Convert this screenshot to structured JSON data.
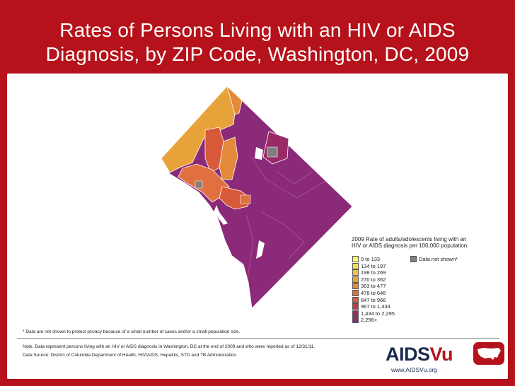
{
  "title": {
    "line1": "Rates of Persons Living with an HIV or AIDS",
    "line2": "Diagnosis, by ZIP Code, Washington, DC, 2009"
  },
  "legend": {
    "title_line1": "2009 Rate of adults/adolescents living with an",
    "title_line2": "HIV or AIDS diagnosis per 100,000 population.",
    "items": [
      {
        "label": "0 to 133",
        "color": "#ffff66"
      },
      {
        "label": "134 to 197",
        "color": "#f8df3e"
      },
      {
        "label": "198 to 269",
        "color": "#f0c440"
      },
      {
        "label": "270 to 362",
        "color": "#e8a23a"
      },
      {
        "label": "363 to 477",
        "color": "#e48a3a"
      },
      {
        "label": "478 to 646",
        "color": "#e07040"
      },
      {
        "label": "647 to 966",
        "color": "#d85a3a"
      },
      {
        "label": "967 to 1,433",
        "color": "#c03a52"
      },
      {
        "label": "1,434 to 2,295",
        "color": "#9a2a66"
      },
      {
        "label": "2,296+",
        "color": "#8b2a78"
      }
    ],
    "not_shown": {
      "label": "Data not shown*",
      "color": "#7f7f7f"
    }
  },
  "footnote": "* Data are not shown to protect privacy because of a small number of cases and/or a small population size.",
  "note": "Note. Data represent persons living with an HIV or AIDS diagnosis in Washington, DC at the end of 2009 and who were reported as of 12/31/11.",
  "source": "Data Source: District of Columbia Department of Health, HIV/AIDS, Hepatitis, STD and TB Administration.",
  "logo": {
    "part1": "AIDS",
    "part2": "Vu",
    "url": "www.AIDSVu.org"
  },
  "colors": {
    "frame": "#b5121b",
    "high": "#8b2a78",
    "upper": "#9a2a66",
    "mid": "#d85a3a",
    "orange": "#e48a3a",
    "gold": "#e8a23a",
    "na": "#7f7f7f"
  }
}
